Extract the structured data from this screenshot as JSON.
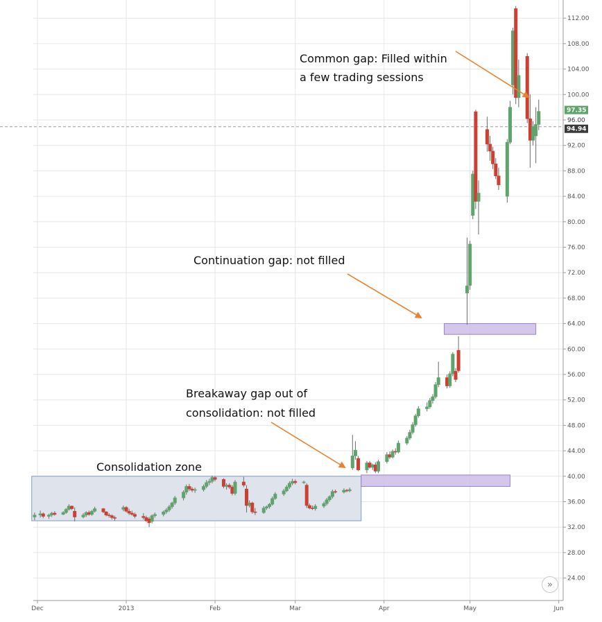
{
  "chart_data": {
    "type": "candlestick",
    "y_axis": {
      "position": "right",
      "ylim": [
        21,
        114
      ],
      "ticks": [
        24,
        28,
        32,
        36,
        40,
        44,
        48,
        52,
        56,
        60,
        64,
        68,
        72,
        76,
        80,
        84,
        88,
        92,
        96,
        100,
        104,
        108,
        112
      ],
      "tick_labels": [
        "24.00",
        "28.00",
        "32.00",
        "36.00",
        "40.00",
        "44.00",
        "48.00",
        "52.00",
        "56.00",
        "60.00",
        "64.00",
        "68.00",
        "72.00",
        "76.00",
        "80.00",
        "84.00",
        "88.00",
        "92.00",
        "96.00",
        "100.00",
        "104.00",
        "108.00",
        "112.00"
      ]
    },
    "x_axis": {
      "ticks": [
        {
          "label": "Dec",
          "day": 0
        },
        {
          "label": "2013",
          "day": 31
        },
        {
          "label": "Feb",
          "day": 62
        },
        {
          "label": "Mar",
          "day": 90
        },
        {
          "label": "Apr",
          "day": 121
        },
        {
          "label": "May",
          "day": 151
        },
        {
          "label": "Jun",
          "day": 182
        }
      ]
    },
    "grid": true,
    "colors": {
      "up": "#5fa36d",
      "down": "#cc3f33",
      "gap_fill": "#cdbde6",
      "gap_stroke": "#9b82c9",
      "zone_fill": "#dfe4ec",
      "zone_stroke": "#7f9cbf",
      "arrow": "#e8822e",
      "price_last": "#3a3a3a",
      "price_high": "#5fa36d"
    },
    "price_labels": [
      {
        "label": "97.35",
        "value": 97.35,
        "style": "up"
      },
      {
        "label": "96.00",
        "value": 96.0,
        "style": "tick"
      },
      {
        "label": "94.94",
        "value": 94.94,
        "style": "last"
      }
    ],
    "reference_line": 94.94,
    "zones": [
      {
        "name": "consolidation",
        "day_start": -2,
        "day_end": 113,
        "y_low": 33,
        "y_high": 40
      }
    ],
    "gaps": [
      {
        "name": "breakaway",
        "day_start": 113,
        "day_end": 165,
        "y_low": 38.4,
        "y_high": 40.2
      },
      {
        "name": "continuation",
        "day_start": 142,
        "day_end": 174,
        "y_low": 62.3,
        "y_high": 64.0
      }
    ],
    "annotations": [
      {
        "name": "common-gap",
        "lines": [
          "Common gap: Filled within",
          "a few trading sessions"
        ]
      },
      {
        "name": "continuation-gap",
        "lines": [
          "Continuation gap: not filled"
        ]
      },
      {
        "name": "breakaway-gap",
        "lines": [
          "Breakaway gap out of",
          "consolidation: not filled"
        ]
      },
      {
        "name": "consolidation-zone",
        "lines": [
          "Consolidation zone"
        ]
      }
    ],
    "candles": [
      {
        "d": -1,
        "o": 33.6,
        "h": 34.3,
        "l": 33.1,
        "c": 33.9
      },
      {
        "d": 1,
        "o": 33.9,
        "h": 34.6,
        "l": 33.5,
        "c": 34.1
      },
      {
        "d": 2,
        "o": 34.1,
        "h": 34.3,
        "l": 33.4,
        "c": 33.7
      },
      {
        "d": 4,
        "o": 33.7,
        "h": 34.1,
        "l": 33.3,
        "c": 33.9
      },
      {
        "d": 5,
        "o": 33.9,
        "h": 34.4,
        "l": 33.6,
        "c": 34.2
      },
      {
        "d": 6,
        "o": 34.2,
        "h": 34.5,
        "l": 33.8,
        "c": 34.0
      },
      {
        "d": 9,
        "o": 34.0,
        "h": 34.5,
        "l": 33.9,
        "c": 34.3
      },
      {
        "d": 10,
        "o": 34.3,
        "h": 35.0,
        "l": 34.1,
        "c": 34.8
      },
      {
        "d": 11,
        "o": 34.8,
        "h": 35.6,
        "l": 34.6,
        "c": 35.3
      },
      {
        "d": 12,
        "o": 35.3,
        "h": 35.4,
        "l": 34.7,
        "c": 34.9
      },
      {
        "d": 13,
        "o": 34.5,
        "h": 35.1,
        "l": 32.9,
        "c": 33.6
      },
      {
        "d": 16,
        "o": 33.6,
        "h": 34.2,
        "l": 33.4,
        "c": 33.9
      },
      {
        "d": 17,
        "o": 33.9,
        "h": 34.5,
        "l": 33.6,
        "c": 34.3
      },
      {
        "d": 18,
        "o": 34.3,
        "h": 34.6,
        "l": 33.8,
        "c": 34.0
      },
      {
        "d": 19,
        "o": 34.0,
        "h": 34.7,
        "l": 33.8,
        "c": 34.5
      },
      {
        "d": 20,
        "o": 34.5,
        "h": 35.2,
        "l": 34.3,
        "c": 34.9
      },
      {
        "d": 23,
        "o": 34.9,
        "h": 35.0,
        "l": 34.2,
        "c": 34.4
      },
      {
        "d": 24,
        "o": 34.4,
        "h": 34.5,
        "l": 33.7,
        "c": 33.9
      },
      {
        "d": 25,
        "o": 33.9,
        "h": 34.2,
        "l": 33.5,
        "c": 33.8
      },
      {
        "d": 26,
        "o": 33.8,
        "h": 34.0,
        "l": 33.2,
        "c": 33.5
      },
      {
        "d": 27,
        "o": 33.5,
        "h": 33.8,
        "l": 33.0,
        "c": 33.4
      },
      {
        "d": 30,
        "o": 34.8,
        "h": 35.4,
        "l": 34.5,
        "c": 35.1
      },
      {
        "d": 31,
        "o": 35.1,
        "h": 35.3,
        "l": 34.3,
        "c": 34.5
      },
      {
        "d": 32,
        "o": 34.5,
        "h": 34.9,
        "l": 33.9,
        "c": 34.2
      },
      {
        "d": 33,
        "o": 34.2,
        "h": 34.6,
        "l": 33.8,
        "c": 34.0
      },
      {
        "d": 34,
        "o": 34.0,
        "h": 34.3,
        "l": 33.4,
        "c": 33.7
      },
      {
        "d": 37,
        "o": 33.7,
        "h": 34.2,
        "l": 33.2,
        "c": 33.5
      },
      {
        "d": 38,
        "o": 33.5,
        "h": 33.8,
        "l": 32.8,
        "c": 33.0
      },
      {
        "d": 39,
        "o": 33.3,
        "h": 33.6,
        "l": 32.0,
        "c": 32.7
      },
      {
        "d": 40,
        "o": 32.9,
        "h": 34.0,
        "l": 32.6,
        "c": 33.8
      },
      {
        "d": 41,
        "o": 33.8,
        "h": 34.3,
        "l": 33.5,
        "c": 34.0
      },
      {
        "d": 44,
        "o": 34.0,
        "h": 34.6,
        "l": 33.7,
        "c": 34.4
      },
      {
        "d": 45,
        "o": 34.4,
        "h": 35.0,
        "l": 34.1,
        "c": 34.7
      },
      {
        "d": 46,
        "o": 34.7,
        "h": 35.5,
        "l": 34.4,
        "c": 35.2
      },
      {
        "d": 47,
        "o": 35.2,
        "h": 36.0,
        "l": 34.9,
        "c": 35.8
      },
      {
        "d": 48,
        "o": 35.8,
        "h": 36.9,
        "l": 35.5,
        "c": 36.6
      },
      {
        "d": 51,
        "o": 36.6,
        "h": 37.8,
        "l": 36.2,
        "c": 37.5
      },
      {
        "d": 52,
        "o": 37.5,
        "h": 38.7,
        "l": 37.1,
        "c": 38.4
      },
      {
        "d": 53,
        "o": 38.4,
        "h": 38.8,
        "l": 37.7,
        "c": 38.0
      },
      {
        "d": 54,
        "o": 38.0,
        "h": 38.3,
        "l": 37.5,
        "c": 37.8
      },
      {
        "d": 55,
        "o": 37.8,
        "h": 38.2,
        "l": 37.4,
        "c": 37.9
      },
      {
        "d": 58,
        "o": 37.9,
        "h": 38.7,
        "l": 37.6,
        "c": 38.4
      },
      {
        "d": 59,
        "o": 38.4,
        "h": 39.4,
        "l": 38.1,
        "c": 39.0
      },
      {
        "d": 60,
        "o": 39.0,
        "h": 39.6,
        "l": 38.6,
        "c": 39.2
      },
      {
        "d": 61,
        "o": 39.2,
        "h": 40.1,
        "l": 38.9,
        "c": 39.8
      },
      {
        "d": 62,
        "o": 39.8,
        "h": 40.0,
        "l": 39.2,
        "c": 39.5
      },
      {
        "d": 65,
        "o": 39.5,
        "h": 39.7,
        "l": 38.1,
        "c": 38.4
      },
      {
        "d": 66,
        "o": 38.4,
        "h": 38.9,
        "l": 37.9,
        "c": 38.6
      },
      {
        "d": 67,
        "o": 38.6,
        "h": 38.9,
        "l": 38.0,
        "c": 38.3
      },
      {
        "d": 68,
        "o": 38.3,
        "h": 38.6,
        "l": 37.0,
        "c": 37.3
      },
      {
        "d": 69,
        "o": 37.3,
        "h": 39.4,
        "l": 37.0,
        "c": 39.1
      },
      {
        "d": 72,
        "o": 39.1,
        "h": 39.9,
        "l": 38.3,
        "c": 38.6
      },
      {
        "d": 73,
        "o": 38.0,
        "h": 38.6,
        "l": 34.3,
        "c": 35.4
      },
      {
        "d": 74,
        "o": 35.4,
        "h": 36.2,
        "l": 35.1,
        "c": 35.8
      },
      {
        "d": 75,
        "o": 35.8,
        "h": 36.0,
        "l": 34.1,
        "c": 34.4
      },
      {
        "d": 76,
        "o": 34.4,
        "h": 35.0,
        "l": 33.9,
        "c": 34.3
      },
      {
        "d": 79,
        "o": 34.3,
        "h": 35.3,
        "l": 34.1,
        "c": 35.0
      },
      {
        "d": 80,
        "o": 35.0,
        "h": 35.4,
        "l": 34.7,
        "c": 35.2
      },
      {
        "d": 81,
        "o": 35.2,
        "h": 35.8,
        "l": 34.9,
        "c": 35.6
      },
      {
        "d": 82,
        "o": 35.6,
        "h": 36.8,
        "l": 35.4,
        "c": 36.5
      },
      {
        "d": 83,
        "o": 36.5,
        "h": 37.5,
        "l": 36.3,
        "c": 37.2
      },
      {
        "d": 86,
        "o": 37.2,
        "h": 38.0,
        "l": 36.9,
        "c": 37.7
      },
      {
        "d": 87,
        "o": 37.7,
        "h": 38.6,
        "l": 37.5,
        "c": 38.3
      },
      {
        "d": 88,
        "o": 38.3,
        "h": 39.2,
        "l": 38.0,
        "c": 38.9
      },
      {
        "d": 89,
        "o": 38.9,
        "h": 39.6,
        "l": 38.6,
        "c": 39.2
      },
      {
        "d": 90,
        "o": 39.2,
        "h": 39.5,
        "l": 38.7,
        "c": 39.0
      },
      {
        "d": 93,
        "o": 39.0,
        "h": 39.3,
        "l": 38.8,
        "c": 39.1
      },
      {
        "d": 94,
        "o": 38.6,
        "h": 38.9,
        "l": 35.0,
        "c": 35.4
      },
      {
        "d": 95,
        "o": 35.4,
        "h": 35.7,
        "l": 34.8,
        "c": 35.0
      },
      {
        "d": 96,
        "o": 35.0,
        "h": 35.4,
        "l": 34.7,
        "c": 34.9
      },
      {
        "d": 97,
        "o": 34.9,
        "h": 35.6,
        "l": 34.6,
        "c": 35.3
      },
      {
        "d": 100,
        "o": 35.3,
        "h": 36.0,
        "l": 35.0,
        "c": 35.7
      },
      {
        "d": 101,
        "o": 35.7,
        "h": 36.6,
        "l": 35.4,
        "c": 36.3
      },
      {
        "d": 102,
        "o": 36.3,
        "h": 37.0,
        "l": 36.0,
        "c": 36.8
      },
      {
        "d": 103,
        "o": 36.8,
        "h": 37.9,
        "l": 36.5,
        "c": 37.6
      },
      {
        "d": 104,
        "o": 37.6,
        "h": 37.9,
        "l": 37.3,
        "c": 37.5
      },
      {
        "d": 107,
        "o": 37.5,
        "h": 38.1,
        "l": 37.3,
        "c": 37.8
      },
      {
        "d": 108,
        "o": 37.8,
        "h": 38.0,
        "l": 37.5,
        "c": 37.7
      },
      {
        "d": 109,
        "o": 37.7,
        "h": 38.2,
        "l": 37.5,
        "c": 37.9
      },
      {
        "d": 110,
        "o": 41.3,
        "h": 46.5,
        "l": 41.0,
        "c": 43.2
      },
      {
        "d": 111,
        "o": 43.2,
        "h": 45.5,
        "l": 42.6,
        "c": 44.1
      },
      {
        "d": 112,
        "o": 42.8,
        "h": 43.2,
        "l": 40.8,
        "c": 41.0
      },
      {
        "d": 115,
        "o": 41.0,
        "h": 42.4,
        "l": 40.5,
        "c": 42.1
      },
      {
        "d": 116,
        "o": 42.1,
        "h": 42.4,
        "l": 41.2,
        "c": 41.4
      },
      {
        "d": 117,
        "o": 41.4,
        "h": 42.0,
        "l": 41.0,
        "c": 41.8
      },
      {
        "d": 118,
        "o": 41.8,
        "h": 42.2,
        "l": 40.5,
        "c": 40.8
      },
      {
        "d": 119,
        "o": 40.8,
        "h": 42.6,
        "l": 40.5,
        "c": 42.3
      },
      {
        "d": 122,
        "o": 42.3,
        "h": 43.8,
        "l": 42.0,
        "c": 43.4
      },
      {
        "d": 123,
        "o": 43.4,
        "h": 43.9,
        "l": 42.7,
        "c": 43.0
      },
      {
        "d": 124,
        "o": 43.0,
        "h": 44.2,
        "l": 42.8,
        "c": 43.9
      },
      {
        "d": 125,
        "o": 43.9,
        "h": 44.4,
        "l": 43.4,
        "c": 43.8
      },
      {
        "d": 126,
        "o": 43.8,
        "h": 45.6,
        "l": 43.6,
        "c": 45.2
      },
      {
        "d": 129,
        "o": 45.2,
        "h": 46.3,
        "l": 44.9,
        "c": 46.0
      },
      {
        "d": 130,
        "o": 46.0,
        "h": 47.3,
        "l": 45.7,
        "c": 46.9
      },
      {
        "d": 131,
        "o": 46.9,
        "h": 48.5,
        "l": 46.6,
        "c": 48.1
      },
      {
        "d": 132,
        "o": 48.1,
        "h": 49.8,
        "l": 47.8,
        "c": 49.5
      },
      {
        "d": 133,
        "o": 49.5,
        "h": 51.0,
        "l": 49.2,
        "c": 50.6
      },
      {
        "d": 136,
        "o": 50.6,
        "h": 51.6,
        "l": 50.2,
        "c": 50.9
      },
      {
        "d": 137,
        "o": 50.9,
        "h": 52.3,
        "l": 50.6,
        "c": 51.9
      },
      {
        "d": 138,
        "o": 51.9,
        "h": 52.9,
        "l": 51.4,
        "c": 52.5
      },
      {
        "d": 139,
        "o": 52.5,
        "h": 54.8,
        "l": 52.2,
        "c": 54.4
      },
      {
        "d": 140,
        "o": 54.4,
        "h": 58.0,
        "l": 54.0,
        "c": 55.5
      },
      {
        "d": 143,
        "o": 55.5,
        "h": 56.0,
        "l": 53.8,
        "c": 54.2
      },
      {
        "d": 144,
        "o": 54.2,
        "h": 56.5,
        "l": 53.9,
        "c": 56.1
      },
      {
        "d": 145,
        "o": 56.1,
        "h": 59.5,
        "l": 55.7,
        "c": 59.2
      },
      {
        "d": 146,
        "o": 56.5,
        "h": 57.0,
        "l": 54.8,
        "c": 55.2
      },
      {
        "d": 147,
        "o": 59.8,
        "h": 62.0,
        "l": 56.3,
        "c": 56.6
      },
      {
        "d": 150,
        "o": 68.8,
        "h": 77.5,
        "l": 63.8,
        "c": 69.9
      },
      {
        "d": 151,
        "o": 70.0,
        "h": 77.0,
        "l": 69.3,
        "c": 76.5
      },
      {
        "d": 152,
        "o": 81.0,
        "h": 88.0,
        "l": 80.4,
        "c": 87.5
      },
      {
        "d": 153,
        "o": 97.3,
        "h": 97.6,
        "l": 82.0,
        "c": 83.2
      },
      {
        "d": 154,
        "o": 83.2,
        "h": 86.5,
        "l": 78.0,
        "c": 84.5
      },
      {
        "d": 157,
        "o": 94.5,
        "h": 96.5,
        "l": 91.0,
        "c": 92.2
      },
      {
        "d": 158,
        "o": 92.2,
        "h": 93.5,
        "l": 89.6,
        "c": 91.1
      },
      {
        "d": 159,
        "o": 91.1,
        "h": 91.8,
        "l": 88.3,
        "c": 89.1
      },
      {
        "d": 160,
        "o": 89.1,
        "h": 90.0,
        "l": 86.7,
        "c": 87.2
      },
      {
        "d": 161,
        "o": 87.2,
        "h": 88.5,
        "l": 85.0,
        "c": 85.8
      },
      {
        "d": 164,
        "o": 84.0,
        "h": 93.0,
        "l": 83.0,
        "c": 92.5
      },
      {
        "d": 165,
        "o": 92.5,
        "h": 99.0,
        "l": 92.2,
        "c": 98.0
      },
      {
        "d": 166,
        "o": 101.5,
        "h": 110.5,
        "l": 100.0,
        "c": 110.0
      },
      {
        "d": 167,
        "o": 113.5,
        "h": 113.9,
        "l": 98.5,
        "c": 99.5
      },
      {
        "d": 168,
        "o": 99.5,
        "h": 105.5,
        "l": 98.0,
        "c": 103.0
      },
      {
        "d": 171,
        "o": 106.0,
        "h": 106.5,
        "l": 95.5,
        "c": 96.2
      },
      {
        "d": 172,
        "o": 96.2,
        "h": 100.0,
        "l": 88.5,
        "c": 92.8
      },
      {
        "d": 173,
        "o": 92.8,
        "h": 95.8,
        "l": 92.0,
        "c": 95.0
      },
      {
        "d": 174,
        "o": 93.5,
        "h": 98.0,
        "l": 89.2,
        "c": 95.3
      },
      {
        "d": 175,
        "o": 95.3,
        "h": 99.2,
        "l": 94.4,
        "c": 97.35
      }
    ]
  }
}
